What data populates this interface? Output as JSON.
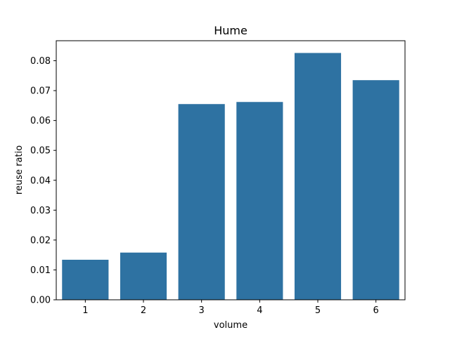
{
  "chart_data": {
    "type": "bar",
    "title": "Hume",
    "xlabel": "volume",
    "ylabel": "reuse ratio",
    "categories": [
      "1",
      "2",
      "3",
      "4",
      "5",
      "6"
    ],
    "values": [
      0.0134,
      0.0158,
      0.0655,
      0.0662,
      0.0826,
      0.0735
    ],
    "ylim": [
      0,
      0.0867
    ],
    "yticks": [
      0.0,
      0.01,
      0.02,
      0.03,
      0.04,
      0.05,
      0.06,
      0.07,
      0.08
    ],
    "ytick_labels": [
      "0.00",
      "0.01",
      "0.02",
      "0.03",
      "0.04",
      "0.05",
      "0.06",
      "0.07",
      "0.08"
    ],
    "bar_color": "#2e72a2",
    "grid": false,
    "legend": "none"
  }
}
